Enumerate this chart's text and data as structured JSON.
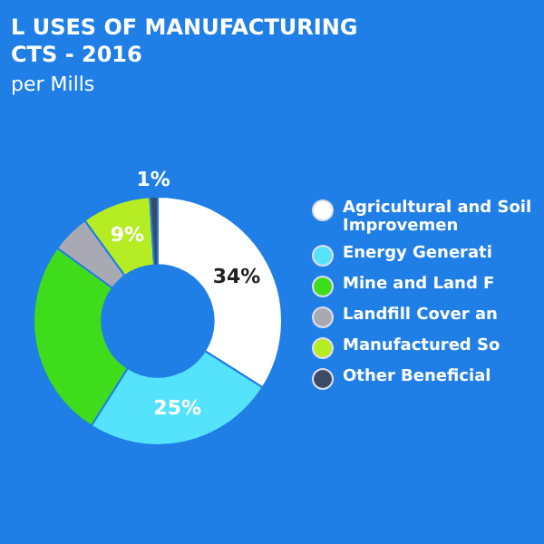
{
  "chart_data": {
    "type": "donut",
    "title": "L USES OF MANUFACTURING CTS - 2016",
    "subtitle": "per Mills",
    "categories": [
      "Agricultural and Soil Improvemen",
      "Energy Generati",
      "Mine and Land F",
      "Landfill Cover an",
      "Manufactured So",
      "Other Beneficial"
    ],
    "values": [
      34,
      25,
      26,
      5,
      9,
      1
    ],
    "colors": [
      "#ffffff",
      "#55e3fb",
      "#3fdc1c",
      "#a9a9b4",
      "#b5ec24",
      "#3d4a63"
    ],
    "value_labels": [
      "34%",
      "25%",
      null,
      null,
      "9%",
      "1%"
    ],
    "legend": "right"
  }
}
